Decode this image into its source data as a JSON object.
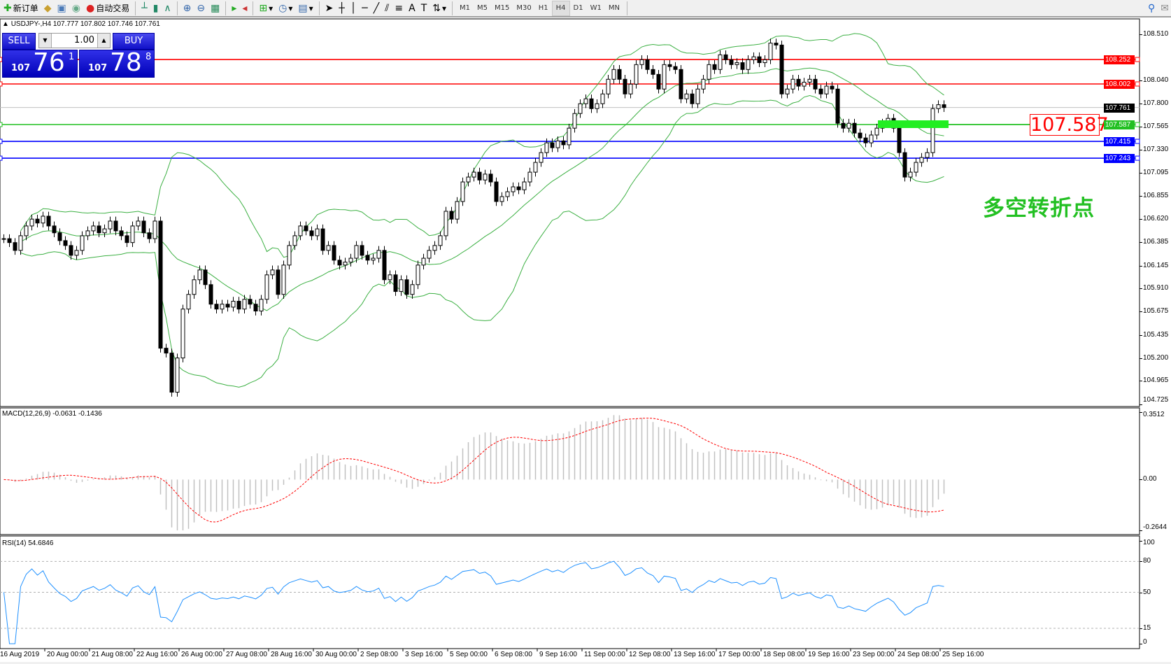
{
  "toolbar": {
    "items": [
      {
        "icon": "new-order-icon",
        "label": "新订单"
      },
      {
        "icon": "history-icon",
        "label": ""
      },
      {
        "icon": "terminal-icon",
        "label": ""
      },
      {
        "icon": "signal-icon",
        "label": ""
      },
      {
        "icon": "auto-trading-icon",
        "label": "自动交易"
      }
    ],
    "timeframes": [
      "M1",
      "M5",
      "M15",
      "M30",
      "H1",
      "H4",
      "D1",
      "W1",
      "MN"
    ],
    "active_timeframe": "H4"
  },
  "chart": {
    "header": "USDJPY-,H4  107.777 107.802 107.746 107.761",
    "price_ticks": [
      "108.510",
      "108.040",
      "107.800",
      "107.565",
      "107.330",
      "107.095",
      "106.855",
      "106.620",
      "106.385",
      "106.145",
      "105.910",
      "105.675",
      "105.435",
      "105.200",
      "104.965",
      "104.725"
    ],
    "price_range": [
      104.725,
      108.51
    ],
    "lines": [
      {
        "price": "108.252",
        "color": "#ff0000"
      },
      {
        "price": "108.002",
        "color": "#ff0000"
      },
      {
        "price": "107.587",
        "color": "#22c022"
      },
      {
        "price": "107.415",
        "color": "#0000ff"
      },
      {
        "price": "107.243",
        "color": "#0000ff"
      }
    ],
    "bid_line": {
      "price": "107.761",
      "color": "#000000"
    },
    "big_label": "107.587",
    "annotation": "多空转折点",
    "closes": [
      106.42,
      106.38,
      106.3,
      106.45,
      106.55,
      106.62,
      106.58,
      106.65,
      106.55,
      106.48,
      106.4,
      106.35,
      106.25,
      106.3,
      106.45,
      106.5,
      106.55,
      106.48,
      106.52,
      106.6,
      106.5,
      106.45,
      106.38,
      106.55,
      106.6,
      106.48,
      106.42,
      106.6,
      105.3,
      105.25,
      104.85,
      105.2,
      105.7,
      105.85,
      106.0,
      106.1,
      105.95,
      105.75,
      105.7,
      105.75,
      105.72,
      105.78,
      105.7,
      105.8,
      105.75,
      105.68,
      105.8,
      106.05,
      106.1,
      105.85,
      106.15,
      106.35,
      106.45,
      106.55,
      106.5,
      106.45,
      106.52,
      106.3,
      106.35,
      106.2,
      106.15,
      106.18,
      106.22,
      106.35,
      106.25,
      106.2,
      106.22,
      106.3,
      106.0,
      106.05,
      105.88,
      106.0,
      105.85,
      105.95,
      106.15,
      106.22,
      106.3,
      106.35,
      106.45,
      106.7,
      106.62,
      106.8,
      107.0,
      107.05,
      107.1,
      107.02,
      107.08,
      107.0,
      106.8,
      106.85,
      106.9,
      106.95,
      106.92,
      107.0,
      107.1,
      107.2,
      107.3,
      107.4,
      107.35,
      107.42,
      107.38,
      107.55,
      107.7,
      107.8,
      107.85,
      107.75,
      107.8,
      107.9,
      108.05,
      108.15,
      108.05,
      107.9,
      108.0,
      108.2,
      108.25,
      108.15,
      108.1,
      107.95,
      108.2,
      108.18,
      108.15,
      107.85,
      107.9,
      107.8,
      107.95,
      108.05,
      108.2,
      108.15,
      108.3,
      108.25,
      108.2,
      108.22,
      108.15,
      108.25,
      108.28,
      108.22,
      108.25,
      108.42,
      108.4,
      107.9,
      107.95,
      108.05,
      107.98,
      108.02,
      108.05,
      107.95,
      107.9,
      107.98,
      107.95,
      107.6,
      107.55,
      107.6,
      107.5,
      107.45,
      107.4,
      107.48,
      107.55,
      107.6,
      107.65,
      107.55,
      107.3,
      107.05,
      107.1,
      107.2,
      107.25,
      107.3,
      107.75,
      107.79,
      107.761
    ]
  },
  "trade_panel": {
    "sell_label": "SELL",
    "buy_label": "BUY",
    "lot": "1.00",
    "sell_big": "107",
    "sell_main": "76",
    "sell_sup": "1",
    "buy_big": "107",
    "buy_main": "78",
    "buy_sup": "8"
  },
  "macd": {
    "header": "MACD(12,26,9) -0.0631 -0.1436",
    "ticks": [
      "0.3512",
      "0.00",
      "-0.2644"
    ],
    "range": [
      -0.2644,
      0.3512
    ]
  },
  "rsi": {
    "header": "RSI(14) 54.6846",
    "ticks": [
      "100",
      "80",
      "50",
      "15",
      "0"
    ],
    "levels": [
      80,
      50,
      15
    ]
  },
  "time_axis": [
    "16 Aug 2019",
    "20 Aug 00:00",
    "21 Aug 08:00",
    "22 Aug 16:00",
    "26 Aug 00:00",
    "27 Aug 08:00",
    "28 Aug 16:00",
    "30 Aug 00:00",
    "2 Sep 08:00",
    "3 Sep 16:00",
    "5 Sep 00:00",
    "6 Sep 08:00",
    "9 Sep 16:00",
    "11 Sep 00:00",
    "12 Sep 08:00",
    "13 Sep 16:00",
    "17 Sep 00:00",
    "18 Sep 08:00",
    "19 Sep 16:00",
    "23 Sep 00:00",
    "24 Sep 08:00",
    "25 Sep 16:00"
  ],
  "colors": {
    "bands": "#3cb043",
    "macd_hist": "#c0c0c0",
    "macd_signal": "#ff0000",
    "rsi": "#1e90ff"
  }
}
